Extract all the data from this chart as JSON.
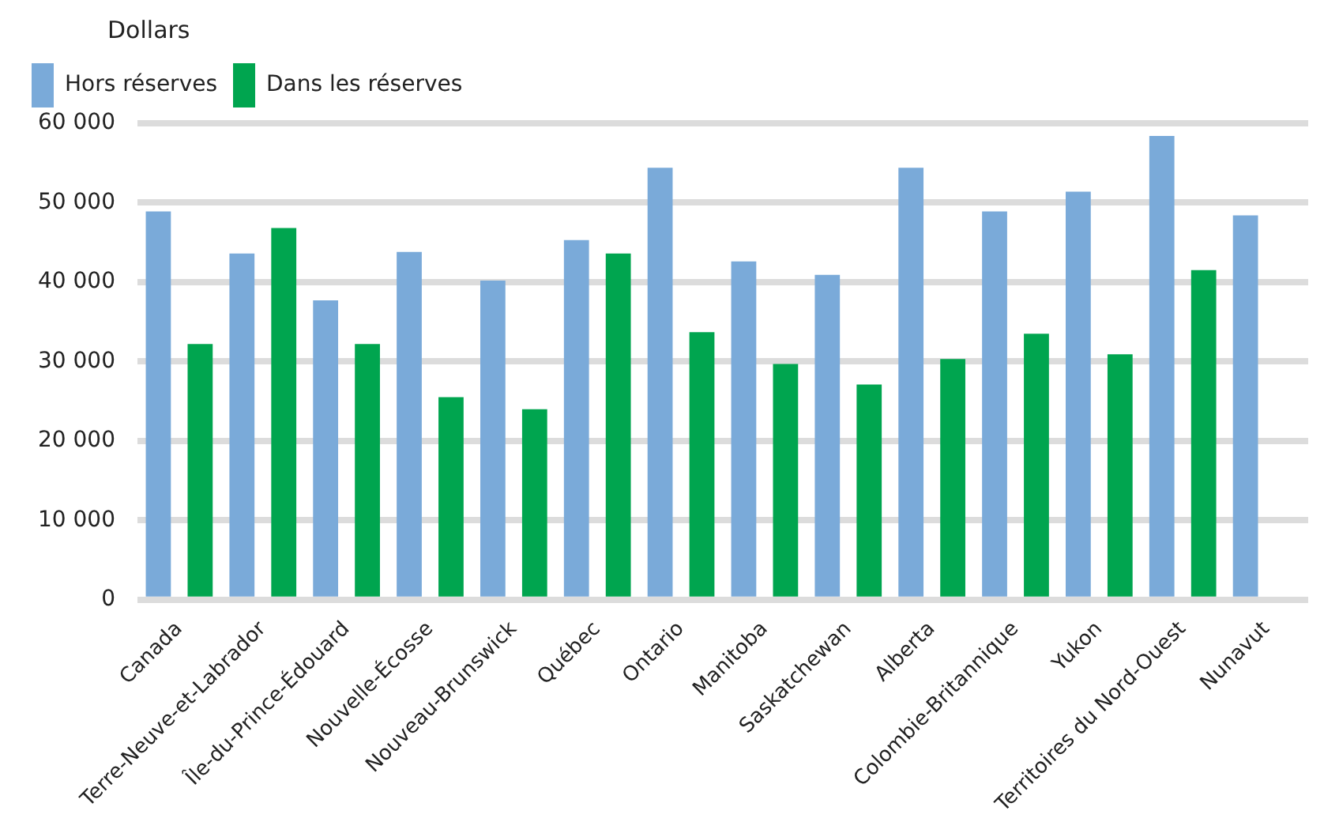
{
  "chart_data": {
    "type": "bar",
    "ylabel": "Dollars",
    "categories": [
      "Canada",
      "Terre-Neuve-et-Labrador",
      "Île-du-Prince-Édouard",
      "Nouvelle-Écosse",
      "Nouveau-Brunswick",
      "Québec",
      "Ontario",
      "Manitoba",
      "Saskatchewan",
      "Alberta",
      "Colombie-Britannique",
      "Yukon",
      "Territoires du Nord-Ouest",
      "Nunavut"
    ],
    "series": [
      {
        "name": "Hors réserves",
        "color": "#7aaad9",
        "values": [
          48900,
          43600,
          37700,
          43800,
          40200,
          45300,
          54400,
          42600,
          40900,
          54400,
          48900,
          51400,
          58400,
          48400
        ]
      },
      {
        "name": "Dans les réserves",
        "color": "#00a54f",
        "values": [
          32200,
          46800,
          32200,
          25500,
          24000,
          43600,
          33700,
          29700,
          27100,
          30300,
          33500,
          30900,
          41500,
          null
        ]
      }
    ],
    "ylim": [
      0,
      60000
    ],
    "yticks": [
      {
        "value": 0,
        "label": "0"
      },
      {
        "value": 10000,
        "label": "10 000"
      },
      {
        "value": 20000,
        "label": "20 000"
      },
      {
        "value": 30000,
        "label": "30 000"
      },
      {
        "value": 40000,
        "label": "40 000"
      },
      {
        "value": 50000,
        "label": "50 000"
      },
      {
        "value": 60000,
        "label": "60 000"
      }
    ],
    "grid": "y",
    "legend": "top"
  }
}
